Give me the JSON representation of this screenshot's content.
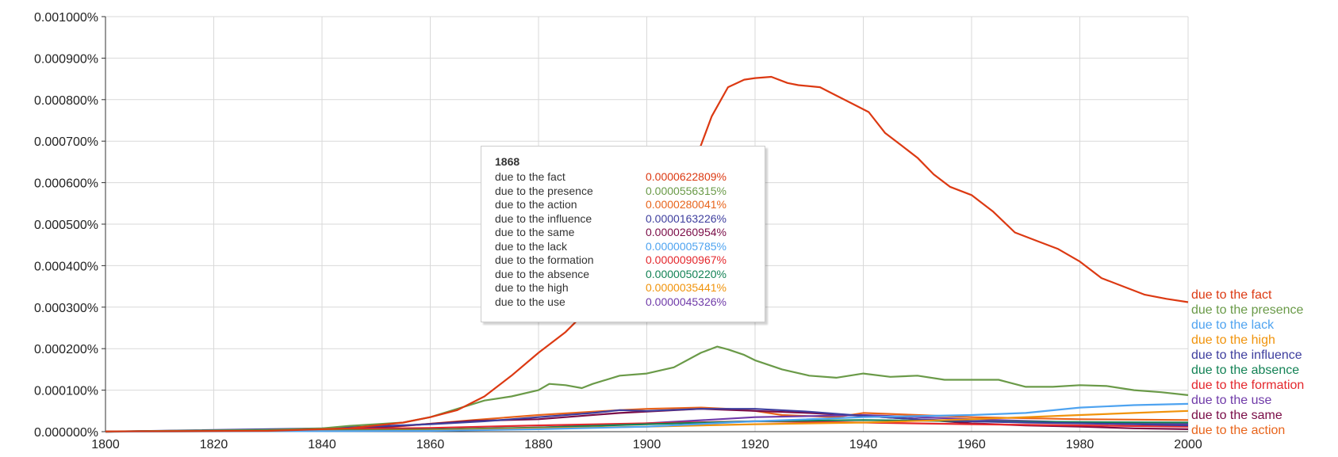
{
  "chart_data": {
    "type": "line",
    "title": "",
    "xlabel": "",
    "ylabel": "",
    "xlim": [
      1800,
      2000
    ],
    "ylim": [
      0,
      0.001
    ],
    "x_ticks": [
      "1800",
      "1820",
      "1840",
      "1860",
      "1880",
      "1900",
      "1920",
      "1940",
      "1960",
      "1980",
      "2000"
    ],
    "y_ticks": [
      "0.000000%",
      "0.000100%",
      "0.000200%",
      "0.000300%",
      "0.000400%",
      "0.000500%",
      "0.000600%",
      "0.000700%",
      "0.000800%",
      "0.000900%",
      "0.001000%"
    ],
    "grid": true,
    "legend": "right-end labels",
    "series": [
      {
        "name": "due to the fact",
        "color": "#dc3912",
        "x": [
          1800,
          1830,
          1845,
          1855,
          1860,
          1865,
          1870,
          1875,
          1880,
          1885,
          1890,
          1895,
          1900,
          1905,
          1908,
          1910,
          1912,
          1915,
          1918,
          1920,
          1923,
          1926,
          1928,
          1932,
          1935,
          1938,
          1941,
          1944,
          1947,
          1950,
          1953,
          1956,
          1960,
          1964,
          1968,
          1972,
          1976,
          1980,
          1984,
          1988,
          1992,
          1996,
          2000
        ],
        "y": [
          5e-07,
          2e-06,
          8e-06,
          2.2e-05,
          3.5e-05,
          5.2e-05,
          8.5e-05,
          0.000135,
          0.00019,
          0.00024,
          0.000305,
          0.000395,
          0.00049,
          0.00058,
          0.00064,
          0.00069,
          0.00076,
          0.00083,
          0.000848,
          0.000852,
          0.000855,
          0.00084,
          0.000835,
          0.00083,
          0.00081,
          0.00079,
          0.00077,
          0.00072,
          0.00069,
          0.00066,
          0.00062,
          0.00059,
          0.00057,
          0.00053,
          0.00048,
          0.00046,
          0.00044,
          0.00041,
          0.00037,
          0.00035,
          0.00033,
          0.00032,
          0.000312
        ]
      },
      {
        "name": "due to the presence",
        "color": "#6a9a48",
        "x": [
          1800,
          1830,
          1840,
          1845,
          1850,
          1855,
          1860,
          1865,
          1870,
          1875,
          1880,
          1882,
          1885,
          1888,
          1890,
          1895,
          1900,
          1905,
          1910,
          1913,
          1915,
          1918,
          1920,
          1925,
          1930,
          1935,
          1940,
          1945,
          1950,
          1955,
          1960,
          1965,
          1970,
          1975,
          1980,
          1985,
          1990,
          1995,
          2000
        ],
        "y": [
          5e-07,
          4e-06,
          8e-06,
          1.4e-05,
          1.8e-05,
          2.2e-05,
          3.5e-05,
          5.5e-05,
          7.5e-05,
          8.5e-05,
          0.0001,
          0.000115,
          0.000112,
          0.000105,
          0.000115,
          0.000135,
          0.00014,
          0.000155,
          0.00019,
          0.000205,
          0.000198,
          0.000185,
          0.000172,
          0.00015,
          0.000135,
          0.00013,
          0.00014,
          0.000132,
          0.000135,
          0.000125,
          0.000125,
          0.000125,
          0.000108,
          0.000108,
          0.000112,
          0.00011,
          0.0001,
          9.5e-05,
          8.8e-05
        ]
      },
      {
        "name": "due to the lack",
        "color": "#4ea3f0",
        "x": [
          1800,
          1860,
          1880,
          1900,
          1920,
          1940,
          1960,
          1970,
          1980,
          1990,
          2000
        ],
        "y": [
          0.0,
          2e-06,
          6e-06,
          1.2e-05,
          2.5e-05,
          3.5e-05,
          4e-05,
          4.5e-05,
          5.8e-05,
          6.4e-05,
          6.7e-05
        ]
      },
      {
        "name": "due to the high",
        "color": "#f0930b",
        "x": [
          1800,
          1860,
          1880,
          1900,
          1920,
          1940,
          1960,
          1970,
          1980,
          1990,
          2000
        ],
        "y": [
          0.0,
          3e-06,
          8e-06,
          1.2e-05,
          1.8e-05,
          2.2e-05,
          3e-05,
          3.5e-05,
          4e-05,
          4.5e-05,
          5e-05
        ]
      },
      {
        "name": "due to the influence",
        "color": "#3e3e9e",
        "x": [
          1800,
          1840,
          1860,
          1870,
          1880,
          1890,
          1895,
          1900,
          1910,
          1920,
          1930,
          1940,
          1950,
          1960,
          1970,
          1980,
          1990,
          2000
        ],
        "y": [
          0.0,
          8e-06,
          1.8e-05,
          2.5e-05,
          3.5e-05,
          4.5e-05,
          5.2e-05,
          5e-05,
          5.5e-05,
          5.5e-05,
          4.8e-05,
          3.8e-05,
          3e-05,
          2.5e-05,
          2.2e-05,
          2e-05,
          1.8e-05,
          1.5e-05
        ]
      },
      {
        "name": "due to the absence",
        "color": "#138255",
        "x": [
          1800,
          1860,
          1880,
          1900,
          1920,
          1940,
          1960,
          1980,
          2000
        ],
        "y": [
          0.0,
          5e-06,
          1e-05,
          1.8e-05,
          2.5e-05,
          2.8e-05,
          2.5e-05,
          2.3e-05,
          2.2e-05
        ]
      },
      {
        "name": "due to the formation",
        "color": "#e4272c",
        "x": [
          1800,
          1860,
          1880,
          1900,
          1920,
          1940,
          1960,
          1980,
          2000
        ],
        "y": [
          0.0,
          9e-06,
          1.5e-05,
          2e-05,
          2.5e-05,
          2.2e-05,
          1.8e-05,
          1.5e-05,
          1.2e-05
        ]
      },
      {
        "name": "due to the use",
        "color": "#6f3aa8",
        "x": [
          1800,
          1860,
          1880,
          1900,
          1920,
          1940,
          1960,
          1980,
          2000
        ],
        "y": [
          0.0,
          4e-06,
          1e-05,
          2e-05,
          3.5e-05,
          4e-05,
          3e-05,
          2.2e-05,
          1.8e-05
        ]
      },
      {
        "name": "due to the same",
        "color": "#7a0c47",
        "x": [
          1800,
          1830,
          1850,
          1868,
          1880,
          1895,
          1910,
          1920,
          1930,
          1940,
          1950,
          1960,
          1970,
          1980,
          1990,
          2000
        ],
        "y": [
          0.0,
          4e-06,
          1e-05,
          2.6e-05,
          3e-05,
          4.5e-05,
          5.5e-05,
          5e-05,
          4.5e-05,
          3.8e-05,
          3e-05,
          2e-05,
          1.5e-05,
          1.2e-05,
          8e-06,
          6e-06
        ]
      },
      {
        "name": "due to the action",
        "color": "#e8641b",
        "x": [
          1800,
          1850,
          1868,
          1880,
          1895,
          1900,
          1910,
          1915,
          1920,
          1925,
          1935,
          1940,
          1950,
          1960,
          1980,
          2000
        ],
        "y": [
          0.0,
          8e-06,
          2.8e-05,
          4e-05,
          5.2e-05,
          5.5e-05,
          5.8e-05,
          5.5e-05,
          5e-05,
          4e-05,
          3.5e-05,
          4.5e-05,
          4e-05,
          3.5e-05,
          3e-05,
          2.8e-05
        ]
      }
    ]
  },
  "end_labels": [
    {
      "label": "due to the fact",
      "color": "#dc3912"
    },
    {
      "label": "due to the presence",
      "color": "#6a9a48"
    },
    {
      "label": "due to the lack",
      "color": "#4ea3f0"
    },
    {
      "label": "due to the high",
      "color": "#f0930b"
    },
    {
      "label": "due to the influence",
      "color": "#3e3e9e"
    },
    {
      "label": "due to the absence",
      "color": "#138255"
    },
    {
      "label": "due to the formation",
      "color": "#e4272c"
    },
    {
      "label": "due to the use",
      "color": "#6f3aa8"
    },
    {
      "label": "due to the same",
      "color": "#7a0c47"
    },
    {
      "label": "due to the action",
      "color": "#e8641b"
    }
  ],
  "tooltip": {
    "year": "1868",
    "rows": [
      {
        "name": "due to the fact",
        "value": "0.0000622809%",
        "color": "#dc3912"
      },
      {
        "name": "due to the presence",
        "value": "0.0000556315%",
        "color": "#6a9a48"
      },
      {
        "name": "due to the action",
        "value": "0.0000280041%",
        "color": "#e8641b"
      },
      {
        "name": "due to the influence",
        "value": "0.0000163226%",
        "color": "#3e3e9e"
      },
      {
        "name": "due to the same",
        "value": "0.0000260954%",
        "color": "#7a0c47"
      },
      {
        "name": "due to the lack",
        "value": "0.0000005785%",
        "color": "#4ea3f0"
      },
      {
        "name": "due to the formation",
        "value": "0.0000090967%",
        "color": "#e4272c"
      },
      {
        "name": "due to the absence",
        "value": "0.0000050220%",
        "color": "#138255"
      },
      {
        "name": "due to the high",
        "value": "0.0000035441%",
        "color": "#f0930b"
      },
      {
        "name": "due to the use",
        "value": "0.0000045326%",
        "color": "#6f3aa8"
      }
    ]
  }
}
